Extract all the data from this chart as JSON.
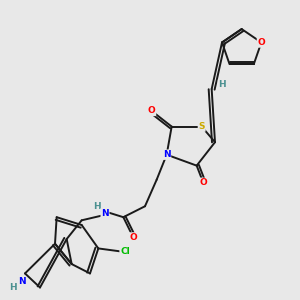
{
  "background_color": "#e8e8e8",
  "bond_color": "#1a1a1a",
  "atom_colors": {
    "O": "#ff0000",
    "N": "#0000ff",
    "S": "#ccaa00",
    "Cl": "#00bb00",
    "H": "#4a9090",
    "C": "#1a1a1a"
  }
}
